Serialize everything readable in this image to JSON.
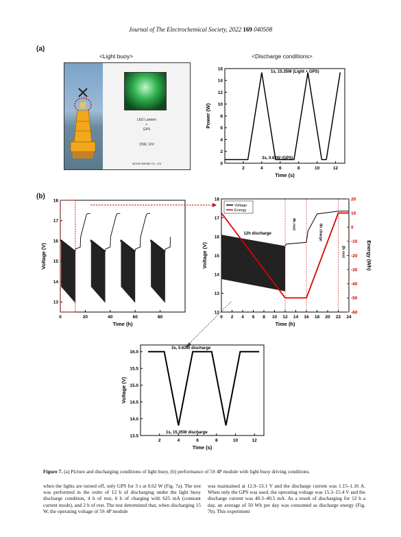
{
  "header": {
    "journal": "Journal of The Electrochemical Society,",
    "year": "2022",
    "volume": "169",
    "article": "040508"
  },
  "panel_a": {
    "label": "(a)",
    "photo_title": "<Light buoy>",
    "photo_text": {
      "line1": "LED Lantern",
      "line2": "+",
      "line3": "GPS",
      "spec": "15W, 12V",
      "maker": "WOORI MARINE CO., LTD"
    },
    "chart_title": "<Discharge conditions>"
  },
  "panel_b": {
    "label": "(b)"
  },
  "chart_data": [
    {
      "type": "line",
      "id": "power",
      "title": "",
      "xlabel": "Time (s)",
      "ylabel": "Power (W)",
      "xlim": [
        0,
        13
      ],
      "ylim": [
        0,
        16
      ],
      "xticks": [
        "2",
        "4",
        "6",
        "8",
        "10",
        "12"
      ],
      "yticks": [
        "0",
        "2",
        "4",
        "6",
        "8",
        "10",
        "12",
        "14",
        "16"
      ],
      "series": [
        {
          "x": [
            0,
            2.5,
            4,
            5.5,
            6,
            7.5,
            9,
            10.5,
            11,
            12.5
          ],
          "y": [
            0.62,
            0.62,
            15.35,
            0.62,
            0.62,
            0.62,
            15.35,
            0.62,
            0.62,
            15.35
          ]
        }
      ],
      "annotations": [
        "1s, 15.35W (Light + GPS)",
        "3s, 0.62W (GPS)"
      ]
    },
    {
      "type": "line",
      "id": "voltage_long",
      "xlabel": "Time (h)",
      "ylabel": "Voltage (V)",
      "xlim": [
        0,
        100
      ],
      "ylim": [
        12.5,
        18
      ],
      "xticks": [
        "0",
        "20",
        "40",
        "60",
        "80"
      ],
      "yticks": [
        "13",
        "14",
        "15",
        "16",
        "17",
        "18"
      ],
      "cycles": [
        {
          "start": 0
        },
        {
          "start": 24
        },
        {
          "start": 48
        },
        {
          "start": 72
        }
      ]
    },
    {
      "type": "line",
      "id": "voltage_energy",
      "xlabel": "Time (h)",
      "ylabel": "Voltage (V)",
      "y2label": "Energy (Wh)",
      "xlim": [
        0,
        24
      ],
      "ylim": [
        12,
        18
      ],
      "y2lim": [
        -60,
        20
      ],
      "xticks": [
        "0",
        "2",
        "4",
        "6",
        "8",
        "10",
        "12",
        "14",
        "16",
        "18",
        "20",
        "22",
        "24"
      ],
      "yticks": [
        "12",
        "13",
        "14",
        "15",
        "16",
        "17",
        "18"
      ],
      "y2ticks": [
        "20",
        "10",
        "0",
        "-10",
        "-20",
        "-30",
        "-40",
        "-50",
        "-60"
      ],
      "legend": [
        "Voltage",
        "Energy"
      ],
      "annotations": [
        "12h discharge",
        "4h rest",
        "6h charge",
        "2h rest"
      ],
      "energy": {
        "x": [
          0,
          12,
          16,
          22,
          24
        ],
        "y": [
          10,
          -50,
          -50,
          10,
          10
        ]
      }
    },
    {
      "type": "line",
      "id": "voltage_zoom",
      "xlabel": "Time (s)",
      "ylabel": "Voltage (V)",
      "xlim": [
        0,
        13
      ],
      "ylim": [
        13.5,
        16.2
      ],
      "xticks": [
        "2",
        "4",
        "6",
        "8",
        "10",
        "12"
      ],
      "yticks": [
        "13.5",
        "14.0",
        "14.5",
        "15.0",
        "15.5",
        "16.0"
      ],
      "annotations": [
        "3s, 0.62W discharge",
        "1s, 15.35W discharge"
      ]
    }
  ],
  "caption": {
    "label": "Figure 7.",
    "text": "(a) Picture and discharging conditions of light buoy, (b) performance of 5S 4P module with light buoy driving conditions."
  },
  "body": {
    "left": "when the lights are turned off, only GPS for 3 s at 0.62 W (Fig. 7a). The test was performed in the order of 12 h of discharging under the light buoy discharge condition, 4 h of rest, 6 h of charging with 625 mA (constant current mode), and 2 h of rest. The test determined that, when discharging 15 W, the operating voltage of 5S 4P module",
    "right": "was maintained at 12.9–13.1 V and the discharge current was 1.15–1.16 A. When only the GPS was used, the operating voltage was 15.3–15.4 V and the discharge current was 40.3–40.5 mA. As a result of discharging for 12 h a day, an average of 50 Wh per day was consumed as discharge energy (Fig. 7b). This experiment"
  }
}
